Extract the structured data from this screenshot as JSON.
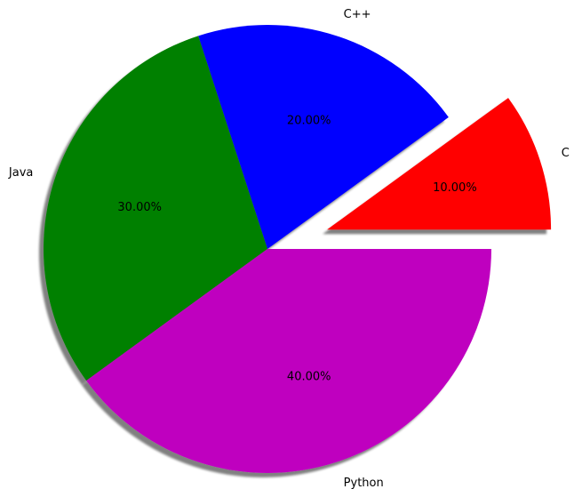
{
  "chart_data": {
    "type": "pie",
    "title": "",
    "categories": [
      "C",
      "C++",
      "Java",
      "Python"
    ],
    "values": [
      10,
      20,
      30,
      40
    ],
    "percent_labels": [
      "10.00%",
      "20.00%",
      "30.00%",
      "40.00%"
    ],
    "colors": [
      "#ff0000",
      "#0000ff",
      "#008000",
      "#bf00bf"
    ],
    "exploded": [
      true,
      false,
      false,
      false
    ],
    "start_angle_deg": 0,
    "direction": "counterclockwise",
    "shadow": true,
    "legend": "none"
  }
}
